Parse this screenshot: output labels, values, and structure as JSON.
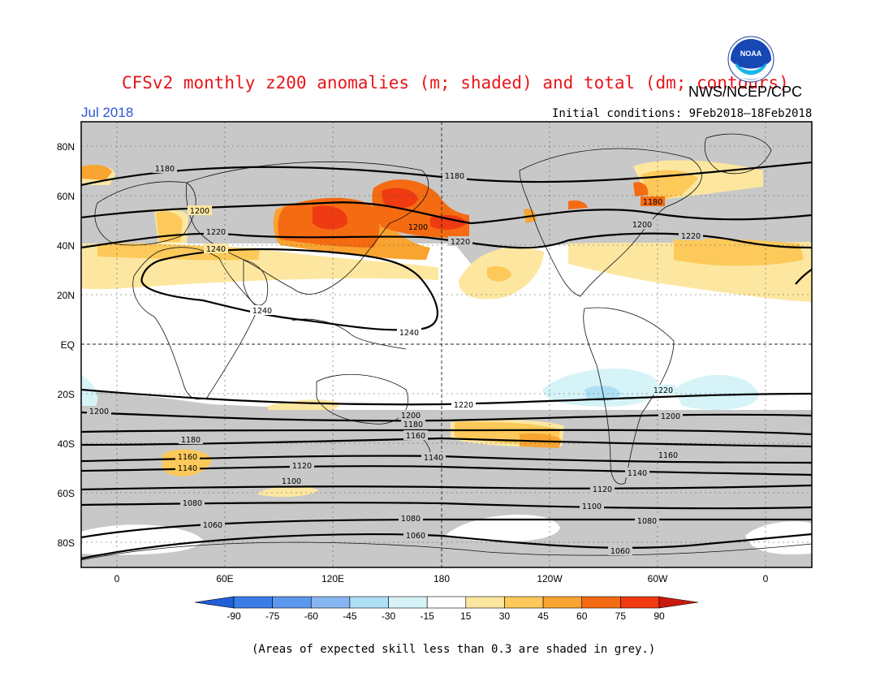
{
  "title": "CFSv2 monthly z200 anomalies (m; shaded) and total (dm; contours)",
  "agency": "NWS/NCEP/CPC",
  "period": "Jul 2018",
  "initial_conditions": "Initial conditions: 9Feb2018–18Feb2018",
  "footnote": "(Areas of expected skill less than 0.3 are shaded in grey.)",
  "logo_text": "NOAA",
  "lat_labels": [
    "80N",
    "60N",
    "40N",
    "20N",
    "EQ",
    "20S",
    "40S",
    "60S",
    "80S"
  ],
  "lon_labels": [
    "0",
    "60E",
    "120E",
    "180",
    "120W",
    "60W",
    "0"
  ],
  "colorbar": {
    "labels": [
      "-90",
      "-75",
      "-60",
      "-45",
      "-30",
      "-15",
      "15",
      "30",
      "45",
      "60",
      "75",
      "90"
    ],
    "colors": [
      "#1f5fd9",
      "#3a7de8",
      "#5b98ee",
      "#86b6f1",
      "#aee0f5",
      "#d6f3f8",
      "#ffffff",
      "#fde7a0",
      "#fcc95a",
      "#f9a431",
      "#f56b12",
      "#ef3a12",
      "#c91a10"
    ]
  },
  "colors": {
    "title": "#e8161a",
    "period": "#2c55d6",
    "grey_mask": "#c8c8c8"
  },
  "contour_labels": [
    "1180",
    "1200",
    "1220",
    "1240",
    "1240",
    "1240",
    "1180",
    "1200",
    "1220",
    "1180",
    "1200",
    "1220",
    "1220",
    "1220",
    "1200",
    "1200",
    "1200",
    "1180",
    "1180",
    "1160",
    "1160",
    "1140",
    "1140",
    "1160",
    "1140",
    "1120",
    "1120",
    "1100",
    "1100",
    "1080",
    "1080",
    "1080",
    "1060",
    "1060",
    "1060"
  ]
}
